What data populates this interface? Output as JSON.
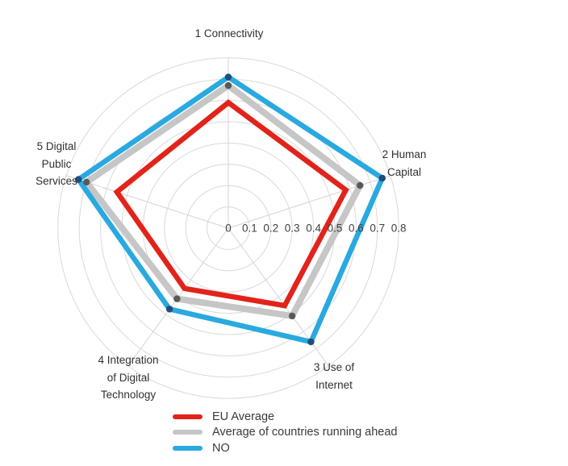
{
  "chart_data": {
    "type": "radar",
    "title": "",
    "categories": [
      "1 Connectivity",
      "2 Human Capital",
      "3 Use of Internet",
      "4 Integration of Digital Technology",
      "5 Digital Public Services"
    ],
    "axis_display": {
      "connectivity": [
        "1 Connectivity"
      ],
      "human_capital": [
        "2 Human",
        "Capital"
      ],
      "use_of_internet": [
        "3 Use of",
        "Internet"
      ],
      "integration": [
        "4 Integration",
        "of Digital",
        "Technology"
      ],
      "public_services": [
        "5 Digital",
        "Public",
        "Services"
      ]
    },
    "radial_ticks": [
      "0",
      "0.1",
      "0.2",
      "0.3",
      "0.4",
      "0.5",
      "0.6",
      "0.7",
      "0.8"
    ],
    "rmax": 0.8,
    "grid_shape": "circular",
    "legend_position": "bottom",
    "series": [
      {
        "name": "EU Average",
        "color": "#E2231A",
        "stroke_width": 6.5,
        "marker_color": "",
        "values": [
          0.59,
          0.58,
          0.45,
          0.35,
          0.55
        ]
      },
      {
        "name": "Average of countries running ahead",
        "color": "#C6C6C6",
        "stroke_width": 8,
        "marker_color": "#595959",
        "values": [
          0.67,
          0.65,
          0.51,
          0.41,
          0.7
        ]
      },
      {
        "name": "NO",
        "color": "#29A9E0",
        "stroke_width": 6.5,
        "marker_color": "#1F4E79",
        "values": [
          0.71,
          0.76,
          0.66,
          0.47,
          0.74
        ]
      }
    ]
  },
  "style": {
    "grid_color": "#D9D9D9",
    "spoke_color": "#D4D4D4",
    "tick_text_color": "#3F3F3F",
    "background": "#FFFFFF"
  }
}
